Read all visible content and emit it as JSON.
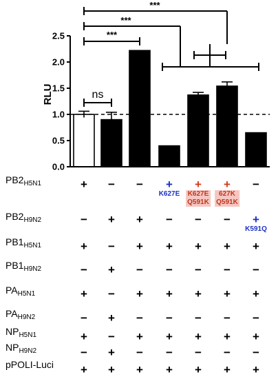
{
  "chart_data": {
    "type": "bar",
    "ylabel": "RLU",
    "ylim": [
      0,
      2.5
    ],
    "yticks": [
      "0.0",
      "0.5",
      "1.0",
      "1.5",
      "2.0",
      "2.5"
    ],
    "reference_line": 1.0,
    "values": [
      1.0,
      0.9,
      2.22,
      0.4,
      1.37,
      1.54,
      0.65
    ],
    "errors": [
      0.06,
      0.14,
      0.0,
      0.0,
      0.05,
      0.08,
      0.0
    ],
    "bar_colors": [
      "#ffffff",
      "#000000",
      "#000000",
      "#000000",
      "#000000",
      "#000000",
      "#000000"
    ],
    "significance": [
      {
        "label": "ns"
      },
      {
        "label": "***"
      },
      {
        "label": "***"
      },
      {
        "label": "***"
      }
    ]
  },
  "matrix": {
    "rows": [
      {
        "base": "PB2",
        "sub": "H5N1",
        "cells": [
          "+",
          "−",
          "−",
          "+",
          "+",
          "+",
          "−"
        ],
        "colors": [
          "black",
          "black",
          "black",
          "blue",
          "red",
          "red",
          "black"
        ]
      },
      {
        "base": "PB2",
        "sub": "H9N2",
        "cells": [
          "−",
          "+",
          "+",
          "−",
          "−",
          "−",
          "+"
        ],
        "colors": [
          "black",
          "black",
          "black",
          "black",
          "black",
          "black",
          "blue"
        ]
      },
      {
        "base": "PB1",
        "sub": "H5N1",
        "cells": [
          "+",
          "−",
          "+",
          "+",
          "+",
          "+",
          "+"
        ]
      },
      {
        "base": "PB1",
        "sub": "H9N2",
        "cells": [
          "−",
          "+",
          "−",
          "−",
          "−",
          "−",
          "−"
        ]
      },
      {
        "base": "PA",
        "sub": "H5N1",
        "cells": [
          "+",
          "−",
          "+",
          "+",
          "+",
          "+",
          "+"
        ]
      },
      {
        "base": "PA",
        "sub": "H9N2",
        "cells": [
          "−",
          "+",
          "−",
          "−",
          "−",
          "−",
          "−"
        ]
      },
      {
        "base": "NP",
        "sub": "H5N1",
        "cells": [
          "+",
          "−",
          "+",
          "+",
          "+",
          "+",
          "+"
        ]
      },
      {
        "base": "NP",
        "sub": "H9N2",
        "cells": [
          "−",
          "+",
          "−",
          "−",
          "−",
          "−",
          "−"
        ]
      },
      {
        "base": "pPOLI-Luci",
        "sub": "",
        "cells": [
          "+",
          "+",
          "+",
          "+",
          "+",
          "+",
          "+"
        ]
      }
    ],
    "notes": [
      {
        "col": 3,
        "row": 0,
        "lines": [
          "K627E"
        ],
        "color": "blue"
      },
      {
        "col": 4,
        "row": 0,
        "lines": [
          "K627E",
          "Q591K"
        ],
        "color": "red"
      },
      {
        "col": 5,
        "row": 0,
        "lines": [
          "627K",
          "Q591K"
        ],
        "color": "red"
      },
      {
        "col": 6,
        "row": 1,
        "lines": [
          "K591Q"
        ],
        "color": "blue"
      }
    ]
  }
}
